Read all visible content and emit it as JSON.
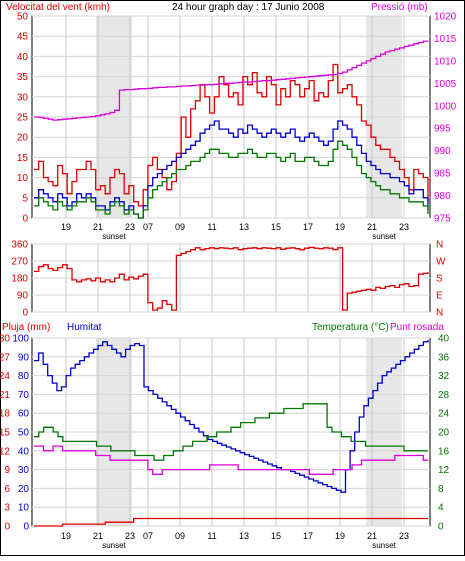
{
  "header": {
    "left_label": "Velocitat del vent (kmh)",
    "title": "24 hour graph day : 17 Junio 2008",
    "right_label": "Pressió (mb)"
  },
  "sunset_label": "sunset",
  "colors": {
    "red": "#dd0000",
    "blue": "#0000cc",
    "green": "#007700",
    "magenta": "#dd00dd",
    "sunset_bar": "#d3d3d3",
    "grid": "#999999"
  },
  "time_labels": [
    "19",
    "21",
    "23",
    "07",
    "09",
    "11",
    "13",
    "15",
    "17",
    "19",
    "21",
    "23"
  ],
  "chart_data": [
    {
      "type": "line",
      "name": "wind",
      "left_axis": {
        "title": "Velocitat del vent (kmh)",
        "ticks": [
          0,
          5,
          10,
          15,
          20,
          25,
          30,
          35,
          40,
          45,
          50
        ]
      },
      "right_axis": {
        "title": "Pressió (mb)",
        "ticks": [
          975,
          980,
          985,
          990,
          995,
          1000,
          1005,
          1010,
          1015,
          1020
        ]
      },
      "x_ticks": [
        "19",
        "21",
        "23",
        "07",
        "09",
        "11",
        "13",
        "15",
        "17",
        "19",
        "21",
        "23"
      ],
      "series": [
        {
          "color": "#dd0000",
          "values": [
            12,
            14,
            10,
            9,
            8,
            13,
            11,
            6,
            9,
            12,
            12,
            14,
            12,
            7,
            8,
            6,
            10,
            12,
            11,
            6,
            8,
            4,
            3,
            7,
            13,
            15,
            12,
            10,
            7,
            9,
            16,
            25,
            20,
            27,
            29,
            33,
            30,
            26,
            30,
            35,
            33,
            30,
            31,
            28,
            35,
            33,
            36,
            31,
            30,
            35,
            33,
            28,
            32,
            30,
            34,
            33,
            30,
            32,
            34,
            29,
            31,
            30,
            34,
            38,
            31,
            32,
            33,
            30,
            28,
            24,
            23,
            20,
            18,
            17,
            17,
            15,
            14,
            12,
            10,
            7,
            12,
            11,
            10,
            4
          ]
        },
        {
          "color": "#0000cc",
          "values": [
            5,
            7,
            6,
            5,
            4,
            6,
            5,
            3,
            4,
            6,
            5,
            6,
            5,
            3,
            3,
            2,
            4,
            5,
            4,
            2,
            3,
            1,
            0,
            3,
            8,
            10,
            11,
            12,
            13,
            14,
            15,
            16,
            17,
            18,
            19,
            21,
            22,
            23,
            24,
            22,
            22,
            21,
            20,
            22,
            21,
            23,
            22,
            21,
            20,
            21,
            22,
            21,
            20,
            21,
            22,
            20,
            19,
            20,
            21,
            20,
            19,
            18,
            19,
            22,
            24,
            23,
            22,
            20,
            18,
            16,
            14,
            13,
            12,
            11,
            11,
            10,
            10,
            9,
            8,
            6,
            7,
            7,
            5,
            2
          ]
        },
        {
          "color": "#007700",
          "values": [
            3,
            5,
            4,
            3,
            2,
            4,
            3,
            2,
            3,
            4,
            4,
            5,
            4,
            2,
            2,
            1,
            3,
            4,
            3,
            1,
            2,
            1,
            0,
            2,
            5,
            7,
            8,
            9,
            10,
            11,
            12,
            12,
            13,
            14,
            14,
            15,
            16,
            17,
            17,
            16,
            16,
            15,
            15,
            16,
            16,
            17,
            16,
            15,
            15,
            16,
            16,
            15,
            14,
            15,
            16,
            14,
            14,
            15,
            15,
            14,
            13,
            13,
            14,
            17,
            19,
            18,
            17,
            15,
            13,
            11,
            10,
            9,
            8,
            7,
            7,
            6,
            6,
            5,
            5,
            4,
            4,
            4,
            3,
            1
          ]
        },
        {
          "color": "#dd00dd",
          "axis": "right",
          "values": [
            997.5,
            997.4,
            997.2,
            997.0,
            996.8,
            996.9,
            997.0,
            997.1,
            997.2,
            997.3,
            997.4,
            997.5,
            997.6,
            997.8,
            998.0,
            998.2,
            998.5,
            999.0,
            1003.5,
            1003.6,
            1003.6,
            1003.7,
            1003.8,
            1003.8,
            1003.9,
            1004.0,
            1004.1,
            1004.1,
            1004.2,
            1004.2,
            1004.3,
            1004.4,
            1004.4,
            1004.5,
            1004.6,
            1004.6,
            1004.7,
            1004.7,
            1004.8,
            1004.9,
            1005.0,
            1005.0,
            1005.1,
            1005.2,
            1005.3,
            1005.3,
            1005.4,
            1005.5,
            1005.6,
            1005.6,
            1005.7,
            1005.8,
            1005.9,
            1006.0,
            1006.1,
            1006.2,
            1006.3,
            1006.4,
            1006.5,
            1006.6,
            1006.7,
            1006.8,
            1006.9,
            1007.0,
            1007.2,
            1007.5,
            1008.0,
            1008.5,
            1009.0,
            1009.5,
            1010.0,
            1010.5,
            1011.0,
            1011.5,
            1012.0,
            1012.3,
            1012.6,
            1012.9,
            1013.2,
            1013.5,
            1013.8,
            1014.1,
            1014.4,
            1014.5
          ]
        }
      ]
    },
    {
      "type": "line",
      "name": "wind-direction",
      "left_axis": {
        "ticks": [
          0,
          90,
          180,
          270,
          360
        ]
      },
      "right_axis": {
        "ticks": [
          "N",
          "E",
          "S",
          "W",
          "N"
        ]
      },
      "series": [
        {
          "color": "#dd0000",
          "values": [
            215,
            240,
            250,
            230,
            220,
            235,
            250,
            230,
            170,
            160,
            170,
            175,
            165,
            180,
            160,
            170,
            160,
            180,
            200,
            170,
            185,
            175,
            190,
            200,
            50,
            10,
            20,
            60,
            40,
            10,
            300,
            310,
            320,
            330,
            340,
            330,
            335,
            340,
            335,
            340,
            338,
            335,
            340,
            330,
            335,
            338,
            340,
            335,
            340,
            338,
            335,
            340,
            332,
            338,
            340,
            335,
            330,
            338,
            342,
            338,
            335,
            340,
            338,
            330,
            340,
            10,
            100,
            105,
            110,
            115,
            120,
            115,
            130,
            125,
            135,
            140,
            130,
            145,
            150,
            135,
            140,
            200,
            205,
            210
          ]
        }
      ]
    },
    {
      "type": "line",
      "name": "rain-humidity-temperature",
      "left_axis": {
        "title": "Pluja (mm)",
        "ticks": [
          0,
          3,
          6,
          9,
          12,
          15,
          18,
          21,
          24,
          27,
          30
        ]
      },
      "left_axis_2": {
        "title": "Humitat",
        "ticks": [
          0,
          10,
          20,
          30,
          40,
          50,
          60,
          70,
          80,
          90,
          100
        ]
      },
      "right_axis": {
        "title": "Temperatura (°C)",
        "ticks": [
          0,
          4,
          8,
          12,
          16,
          20,
          24,
          28,
          32,
          36,
          40
        ]
      },
      "right_title_2": "Punt rosada",
      "series": [
        {
          "color": "#0000cc",
          "name": "Humitat",
          "values": [
            88,
            92,
            86,
            80,
            76,
            72,
            74,
            80,
            84,
            86,
            88,
            90,
            92,
            94,
            96,
            98,
            96,
            94,
            92,
            90,
            94,
            96,
            97,
            96,
            74,
            72,
            70,
            68,
            66,
            64,
            62,
            60,
            58,
            56,
            54,
            52,
            50,
            48,
            46,
            45,
            44,
            43,
            42,
            41,
            40,
            39,
            38,
            37,
            36,
            35,
            34,
            33,
            32,
            31,
            30,
            30,
            29,
            28,
            27,
            26,
            25,
            24,
            23,
            22,
            21,
            20,
            19,
            18,
            30,
            40,
            50,
            58,
            64,
            68,
            72,
            76,
            80,
            82,
            84,
            86,
            88,
            90,
            92,
            94,
            96,
            98,
            99
          ]
        },
        {
          "color": "#007700",
          "name": "Temperatura",
          "values": [
            19,
            20,
            21,
            21,
            20,
            19,
            18,
            18,
            18,
            18,
            18,
            18,
            18,
            17,
            17,
            17,
            16,
            16,
            16,
            16,
            16,
            15,
            15,
            15,
            15,
            14,
            14,
            15,
            15,
            16,
            16,
            17,
            17,
            18,
            18,
            18,
            19,
            19,
            20,
            20,
            20,
            21,
            21,
            22,
            22,
            22,
            23,
            23,
            23,
            24,
            24,
            24,
            25,
            25,
            25,
            25,
            26,
            26,
            26,
            26,
            26,
            21,
            20,
            20,
            19,
            19,
            18,
            18,
            18,
            17,
            17,
            17,
            17,
            17,
            17,
            17,
            17,
            16,
            16,
            16,
            16,
            16,
            16
          ]
        },
        {
          "color": "#dd00dd",
          "name": "Punt rosada",
          "values": [
            17,
            17,
            16,
            16,
            17,
            17,
            16,
            16,
            16,
            16,
            16,
            16,
            16,
            15,
            15,
            15,
            14,
            14,
            14,
            14,
            14,
            14,
            14,
            14,
            12,
            11,
            11,
            12,
            12,
            12,
            12,
            12,
            12,
            12,
            12,
            12,
            12,
            13,
            13,
            13,
            13,
            13,
            13,
            12,
            12,
            12,
            12,
            12,
            12,
            12,
            12,
            12,
            12,
            12,
            12,
            12,
            12,
            12,
            11,
            11,
            11,
            11,
            11,
            12,
            12,
            12,
            12,
            13,
            13,
            14,
            14,
            14,
            14,
            14,
            14,
            14,
            15,
            15,
            15,
            15,
            15,
            15,
            14,
            14
          ]
        },
        {
          "color": "#dd0000",
          "name": "Pluja",
          "values": [
            0,
            0,
            0,
            0,
            0,
            0,
            0.3,
            0.3,
            0.3,
            0.3,
            0.3,
            0.3,
            0.3,
            0.3,
            0.3,
            0.6,
            0.6,
            0.6,
            0.6,
            0.6,
            0.6,
            1.2,
            1.2,
            1.2,
            1.2,
            1.2,
            1.2,
            1.2,
            1.2,
            1.2,
            1.2,
            1.2,
            1.2,
            1.2,
            1.2,
            1.2,
            1.2,
            1.2,
            1.2,
            1.2,
            1.2,
            1.2,
            1.2,
            1.2,
            1.2,
            1.2,
            1.2,
            1.2,
            1.2,
            1.2,
            1.2,
            1.2,
            1.2,
            1.2,
            1.2,
            1.2,
            1.2,
            1.2,
            1.2,
            1.2,
            1.2,
            1.2,
            1.2,
            1.2,
            1.2,
            1.2,
            1.2,
            1.2,
            1.2,
            1.2,
            1.2,
            1.2,
            1.2,
            1.2,
            1.2,
            1.2,
            1.2,
            1.2,
            1.2,
            1.2,
            1.2,
            1.2,
            1.2,
            1.2
          ]
        }
      ]
    }
  ]
}
